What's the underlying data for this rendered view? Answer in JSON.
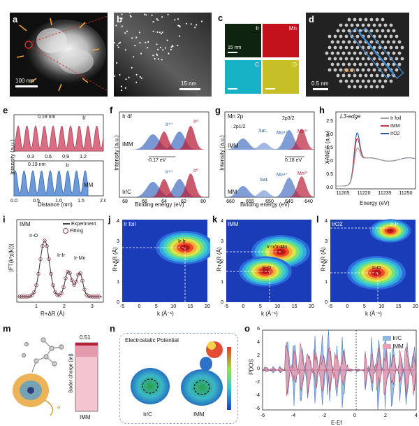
{
  "labels": {
    "a": "a",
    "b": "b",
    "c": "c",
    "d": "d",
    "e": "e",
    "f": "f",
    "g": "g",
    "h": "h",
    "i": "i",
    "j": "j",
    "k": "k",
    "l": "l",
    "m": "m",
    "n": "n",
    "o": "o"
  },
  "a": {
    "scale": "100 nm"
  },
  "b": {
    "scale": "15 nm"
  },
  "c": {
    "maps": [
      "Ir",
      "Mn",
      "C",
      "O"
    ],
    "scale": "15 nm",
    "colors": [
      "#1a3a1a",
      "#c0121a",
      "#19b5c8",
      "#c9c227"
    ]
  },
  "d": {
    "scale": "0.5 nm",
    "facet": "(101)"
  },
  "e": {
    "ylabel": "Intensity (a.u.)",
    "xlabel": "Distance (nm)",
    "top": {
      "name": "Ir",
      "spacing": "0.19 nm",
      "ticks": [
        "0.3",
        "0.6",
        "0.9",
        "1.2"
      ]
    },
    "bottom": {
      "name": "Ir",
      "sub": "MM",
      "spacing": "0.19 nm",
      "ticks": [
        "0.0",
        "0.5",
        "1.0",
        "1.5",
        "2.0"
      ]
    }
  },
  "f": {
    "title": "Ir 4f",
    "ylabel": "Intensity (a.u.)",
    "xlabel": "Binding energy (eV)",
    "ticks": [
      "68",
      "66",
      "64",
      "62",
      "60"
    ],
    "top": {
      "name": "IMM",
      "peaks": [
        "Ir⁴⁺",
        "Ir⁰"
      ]
    },
    "shift": "-0.17 eV",
    "bottom": {
      "name": "Ir/C",
      "peaks": [
        "Ir⁴⁺",
        "Ir⁰"
      ]
    }
  },
  "g": {
    "title": "Mn 2p",
    "ylabel": "Intensity (a.u.)",
    "xlabel": "Binding energy (eV)",
    "ticks": [
      "660",
      "655",
      "650",
      "645",
      "640"
    ],
    "top": {
      "name": "IMM",
      "labels": [
        "2p1/2",
        "Sat.",
        "2p3/2",
        "Mn⁴⁺",
        "Mn²⁺"
      ]
    },
    "shift": "0.18 eV",
    "bottom": {
      "name": "MM",
      "labels": [
        "Sat.",
        "Mn⁴⁺",
        "Mn²⁺"
      ]
    }
  },
  "h": {
    "edge": "L3-edge",
    "ylabel": "XANES (a.u.)",
    "xlabel": "Energy (eV)",
    "xticks": [
      "11205",
      "11220",
      "11235",
      "11250"
    ],
    "yticks": [
      "0.0",
      "0.5",
      "1.0",
      "1.5",
      "2.0",
      "2.5"
    ],
    "legend": [
      {
        "name": "Ir foil",
        "color": "#9aa0a6"
      },
      {
        "name": "IMM",
        "color": "#c8344a"
      },
      {
        "name": "IrO2",
        "color": "#2c5ca8"
      }
    ]
  },
  "i": {
    "name": "IMM",
    "ylabel": "|FT(k³χ(k))|",
    "xlabel": "R+ΔR (Å)",
    "xticks": [
      "1",
      "2",
      "3"
    ],
    "legend": [
      "Experiment",
      "Fitting"
    ],
    "peaks": [
      "Ir-O",
      "Ir-Ir",
      "Ir-Mn"
    ]
  },
  "j": {
    "name": "Ir foil",
    "peak": "Ir-Ir",
    "ylabel": "R+ΔR (Å)",
    "xlabel": "k (Å⁻¹)"
  },
  "k": {
    "name": "IMM",
    "peaks": [
      "Ir-Ir/Ir-Mn",
      "Ir-O"
    ],
    "ylabel": "R+ΔR (Å)",
    "xlabel": "k (Å⁻¹)"
  },
  "l": {
    "name": "IrO2",
    "peaks": [
      "Ir-Ir",
      "Ir-O"
    ],
    "ylabel": "R+ΔR (Å)",
    "xlabel": "k (Å⁻¹)"
  },
  "contour": {
    "xticks": [
      "-5",
      "0",
      "5",
      "10",
      "15",
      "20"
    ],
    "yticks": [
      "0",
      "1",
      "2",
      "3",
      "4"
    ]
  },
  "m": {
    "value": "0.51",
    "ylabel": "Bader charge (|e|)",
    "xlabel": "IMM",
    "arrow": "e"
  },
  "n": {
    "title": "Electrostatic Potential",
    "samples": [
      "Ir/C",
      "IMM"
    ]
  },
  "o": {
    "ylabel": "PDOS",
    "xlabel": "E-Ef",
    "xticks": [
      "-6",
      "-4",
      "-2",
      "0",
      "2",
      "4"
    ],
    "yticks": [
      "-6",
      "-4",
      "-2",
      "0",
      "2",
      "4",
      "6"
    ],
    "legend": [
      {
        "name": "Ir/C",
        "color": "#8fb6e0"
      },
      {
        "name": "IMM",
        "color": "#e8a0b4"
      }
    ]
  }
}
